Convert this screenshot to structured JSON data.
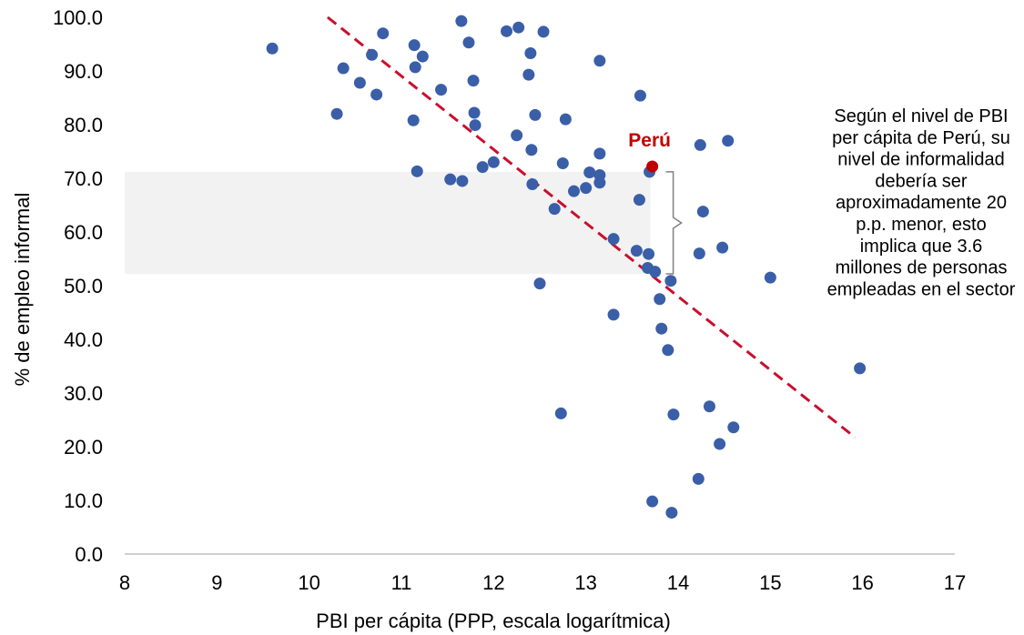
{
  "chart_data": {
    "type": "scatter",
    "xlabel": "PBI per cápita (PPP, escala logarítmica)",
    "ylabel": "% de empleo informal",
    "xlim": [
      8,
      17
    ],
    "ylim": [
      0,
      100
    ],
    "x_ticks": [
      "8",
      "9",
      "10",
      "11",
      "12",
      "13",
      "14",
      "15",
      "16",
      "17"
    ],
    "y_ticks": [
      "0.0",
      "10.0",
      "20.0",
      "30.0",
      "40.0",
      "50.0",
      "60.0",
      "70.0",
      "80.0",
      "90.0",
      "100.0"
    ],
    "grid": false,
    "legend": "none",
    "colors": {
      "points": "#3A5FA8",
      "highlight": "#C00000",
      "trendline": "#C8102E",
      "band": "#F2F2F2",
      "bracket": "#808080"
    },
    "points": [
      [
        9.6,
        94.2
      ],
      [
        10.3,
        82.0
      ],
      [
        10.37,
        90.5
      ],
      [
        10.55,
        87.8
      ],
      [
        10.68,
        93.0
      ],
      [
        10.73,
        85.6
      ],
      [
        10.8,
        97.0
      ],
      [
        11.13,
        80.8
      ],
      [
        11.14,
        94.8
      ],
      [
        11.15,
        90.7
      ],
      [
        11.17,
        71.3
      ],
      [
        11.23,
        92.7
      ],
      [
        11.43,
        86.5
      ],
      [
        11.53,
        69.8
      ],
      [
        11.65,
        99.3
      ],
      [
        11.66,
        69.5
      ],
      [
        11.73,
        95.3
      ],
      [
        11.78,
        88.2
      ],
      [
        11.79,
        82.2
      ],
      [
        11.8,
        79.9
      ],
      [
        11.88,
        72.1
      ],
      [
        12.0,
        73.0
      ],
      [
        12.14,
        97.4
      ],
      [
        12.25,
        78.0
      ],
      [
        12.27,
        98.1
      ],
      [
        12.38,
        89.3
      ],
      [
        12.4,
        93.3
      ],
      [
        12.41,
        75.3
      ],
      [
        12.42,
        68.9
      ],
      [
        12.45,
        81.8
      ],
      [
        12.5,
        50.4
      ],
      [
        12.54,
        97.3
      ],
      [
        12.66,
        64.3
      ],
      [
        12.73,
        26.2
      ],
      [
        12.75,
        72.8
      ],
      [
        12.78,
        81.0
      ],
      [
        12.87,
        67.6
      ],
      [
        13.0,
        68.2
      ],
      [
        13.04,
        71.1
      ],
      [
        13.15,
        91.9
      ],
      [
        13.15,
        74.6
      ],
      [
        13.15,
        69.2
      ],
      [
        13.15,
        70.6
      ],
      [
        13.3,
        58.7
      ],
      [
        13.3,
        44.6
      ],
      [
        13.55,
        56.5
      ],
      [
        13.58,
        66.0
      ],
      [
        13.59,
        85.4
      ],
      [
        13.67,
        53.3
      ],
      [
        13.68,
        55.9
      ],
      [
        13.69,
        71.2
      ],
      [
        13.75,
        52.6
      ],
      [
        13.8,
        47.5
      ],
      [
        13.82,
        42.0
      ],
      [
        13.89,
        38.0
      ],
      [
        13.92,
        50.9
      ],
      [
        13.93,
        7.7
      ],
      [
        13.95,
        26.0
      ],
      [
        13.72,
        9.8
      ],
      [
        14.22,
        14.0
      ],
      [
        14.23,
        56.0
      ],
      [
        14.24,
        76.2
      ],
      [
        14.27,
        63.8
      ],
      [
        14.34,
        27.5
      ],
      [
        14.45,
        20.5
      ],
      [
        14.48,
        57.1
      ],
      [
        14.54,
        77.0
      ],
      [
        14.6,
        23.6
      ],
      [
        15.0,
        51.5
      ],
      [
        15.97,
        34.6
      ]
    ],
    "highlight": {
      "label": "Perú",
      "x": 13.72,
      "y": 72.2
    },
    "trendline": {
      "x1": 10.2,
      "y1": 100.0,
      "x2": 15.92,
      "y2": 21.7
    },
    "band": {
      "y_top": 71.2,
      "y_bottom": 52.2,
      "x_right": 13.7
    },
    "annotation": [
      "Según el nivel de PBI",
      "per cápita de Perú, su",
      "nivel de informalidad",
      "debería ser",
      "aproximadamente 20",
      "p.p. menor, esto",
      "implica que 3.6",
      "millones de personas",
      "empleadas en el sector"
    ]
  }
}
